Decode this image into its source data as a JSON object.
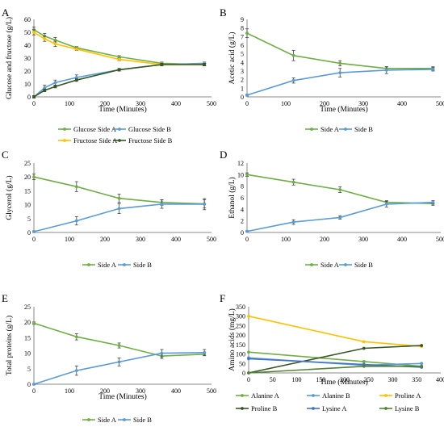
{
  "chart_data": [
    {
      "type": "line",
      "panel_letter": "A",
      "title": "",
      "xlabel": "Time (Minutes)",
      "ylabel": "Glucose and fructose (g/L)",
      "xlim": [
        0,
        500
      ],
      "ylim": [
        0,
        60
      ],
      "xticks": [
        "0",
        "100",
        "200",
        "300",
        "400",
        "500"
      ],
      "yticks": [
        "0",
        "10",
        "20",
        "30",
        "40",
        "50",
        "60"
      ],
      "legend_position": "bottom",
      "series": [
        {
          "name": "Glucose Side A",
          "color": "#70ad47",
          "x": [
            0,
            30,
            60,
            120,
            240,
            360,
            480
          ],
          "y": [
            52,
            47,
            44,
            38,
            31,
            26,
            25
          ],
          "err": [
            2,
            2,
            2,
            1,
            1,
            1,
            1
          ]
        },
        {
          "name": "Glucose Side B",
          "color": "#5b9bd5",
          "x": [
            0,
            30,
            60,
            120,
            240,
            360,
            480
          ],
          "y": [
            0,
            7,
            11,
            15,
            21,
            25,
            26
          ],
          "err": [
            1,
            2,
            2,
            2,
            1,
            1,
            1
          ]
        },
        {
          "name": "Fructose Side A",
          "color": "#ffc000",
          "x": [
            0,
            30,
            60,
            120,
            240,
            360,
            480
          ],
          "y": [
            50,
            45,
            41,
            37,
            29,
            25,
            25
          ],
          "err": [
            2,
            2,
            2,
            1,
            1,
            1,
            1
          ]
        },
        {
          "name": "Fructose Side B",
          "color": "#375623",
          "x": [
            0,
            30,
            60,
            120,
            240,
            360,
            480
          ],
          "y": [
            0,
            5,
            8,
            13,
            21,
            25,
            25
          ],
          "err": [
            1,
            1,
            1,
            1,
            1,
            1,
            1
          ]
        }
      ]
    },
    {
      "type": "line",
      "panel_letter": "B",
      "title": "",
      "xlabel": "Time (Minutes)",
      "ylabel": "Acetic acid (g/L)",
      "xlim": [
        0,
        500
      ],
      "ylim": [
        0,
        9
      ],
      "xticks": [
        "0",
        "100",
        "200",
        "300",
        "400",
        "500"
      ],
      "yticks": [
        "0",
        "1",
        "2",
        "3",
        "4",
        "5",
        "6",
        "7",
        "8",
        "9"
      ],
      "legend_position": "bottom",
      "series": [
        {
          "name": "Side A",
          "color": "#70ad47",
          "x": [
            0,
            120,
            240,
            360,
            480
          ],
          "y": [
            7.4,
            4.8,
            3.9,
            3.3,
            3.3
          ],
          "err": [
            0.5,
            0.6,
            0.3,
            0.2,
            0.2
          ]
        },
        {
          "name": "Side B",
          "color": "#5b9bd5",
          "x": [
            0,
            120,
            240,
            360,
            480
          ],
          "y": [
            0.2,
            1.9,
            2.8,
            3.1,
            3.2
          ],
          "err": [
            0.1,
            0.3,
            0.5,
            0.4,
            0.2
          ]
        }
      ]
    },
    {
      "type": "line",
      "panel_letter": "C",
      "title": "",
      "xlabel": "",
      "ylabel": "Glycerol (g/L)",
      "xlim": [
        0,
        500
      ],
      "ylim": [
        0,
        25
      ],
      "xticks": [
        "0",
        "100",
        "200",
        "300",
        "400",
        "500"
      ],
      "yticks": [
        "0",
        "5",
        "10",
        "15",
        "20",
        "25"
      ],
      "legend_position": "bottom",
      "series": [
        {
          "name": "Side A",
          "color": "#70ad47",
          "x": [
            0,
            120,
            240,
            360,
            480
          ],
          "y": [
            20,
            16.5,
            12.3,
            10.8,
            10.3
          ],
          "err": [
            1,
            1.8,
            1.5,
            1,
            1.5
          ]
        },
        {
          "name": "Side B",
          "color": "#5b9bd5",
          "x": [
            0,
            120,
            240,
            360,
            480
          ],
          "y": [
            0.3,
            4.2,
            8.6,
            10.2,
            10.2
          ],
          "err": [
            0.3,
            1.5,
            1.8,
            1.5,
            2
          ]
        }
      ]
    },
    {
      "type": "line",
      "panel_letter": "D",
      "title": "",
      "xlabel": "",
      "ylabel": "Ethanol (g/L)",
      "xlim": [
        0,
        500
      ],
      "ylim": [
        0,
        12
      ],
      "xticks": [
        "0",
        "100",
        "200",
        "300",
        "400",
        "500"
      ],
      "yticks": [
        "0",
        "2",
        "4",
        "6",
        "8",
        "10",
        "12"
      ],
      "legend_position": "bottom",
      "series": [
        {
          "name": "Side A",
          "color": "#70ad47",
          "x": [
            0,
            120,
            240,
            360,
            480
          ],
          "y": [
            10,
            8.7,
            7.4,
            5.2,
            5
          ],
          "err": [
            0.3,
            0.5,
            0.5,
            0.3,
            0.3
          ]
        },
        {
          "name": "Side B",
          "color": "#5b9bd5",
          "x": [
            0,
            120,
            240,
            360,
            480
          ],
          "y": [
            0.2,
            1.8,
            2.6,
            4.9,
            5.2
          ],
          "err": [
            0.1,
            0.4,
            0.3,
            0.5,
            0.3
          ]
        }
      ]
    },
    {
      "type": "line",
      "panel_letter": "E",
      "title": "",
      "xlabel": "Time (Minutes)",
      "ylabel": "Total proteins (g/L)",
      "xlim": [
        0,
        500
      ],
      "ylim": [
        0,
        25
      ],
      "xticks": [
        "0",
        "100",
        "200",
        "300",
        "400",
        "500"
      ],
      "yticks": [
        "0",
        "5",
        "10",
        "15",
        "20",
        "25"
      ],
      "legend_position": "bottom",
      "series": [
        {
          "name": "Side A",
          "color": "#70ad47",
          "x": [
            0,
            120,
            240,
            360,
            480
          ],
          "y": [
            19.7,
            15.3,
            12.5,
            9.1,
            9.7
          ],
          "err": [
            0.4,
            1,
            0.8,
            0.8,
            0.5
          ]
        },
        {
          "name": "Side B",
          "color": "#5b9bd5",
          "x": [
            0,
            120,
            240,
            360,
            480
          ],
          "y": [
            0,
            4.4,
            7.2,
            10,
            10.2
          ],
          "err": [
            0.2,
            1.5,
            1.3,
            1.2,
            1
          ]
        }
      ]
    },
    {
      "type": "line",
      "panel_letter": "F",
      "title": "",
      "xlabel": "Time (Minutes)",
      "ylabel": "Amino acids (mg/L)",
      "xlim": [
        0,
        400
      ],
      "ylim": [
        0,
        350
      ],
      "xticks": [
        "0",
        "50",
        "100",
        "150",
        "200",
        "250",
        "300",
        "350",
        "400"
      ],
      "yticks": [
        "0",
        "50",
        "100",
        "150",
        "200",
        "250",
        "300",
        "350"
      ],
      "legend_position": "bottom",
      "series": [
        {
          "name": "Alanine A",
          "color": "#70ad47",
          "x": [
            0,
            240,
            360
          ],
          "y": [
            110,
            60,
            35
          ],
          "err": [
            0,
            0,
            0
          ]
        },
        {
          "name": "Alanine B",
          "color": "#5b9bd5",
          "x": [
            0,
            240,
            360
          ],
          "y": [
            80,
            40,
            50
          ],
          "err": [
            0,
            0,
            0
          ]
        },
        {
          "name": "Proline A",
          "color": "#ffc000",
          "x": [
            0,
            240,
            360
          ],
          "y": [
            300,
            165,
            140
          ],
          "err": [
            0,
            0,
            0
          ]
        },
        {
          "name": "Proline B",
          "color": "#375623",
          "x": [
            0,
            240,
            360
          ],
          "y": [
            0,
            130,
            145
          ],
          "err": [
            0,
            0,
            0
          ]
        },
        {
          "name": "Lysine A",
          "color": "#4472c4",
          "x": [
            0,
            240,
            360
          ],
          "y": [
            75,
            45,
            30
          ],
          "err": [
            0,
            0,
            0
          ]
        },
        {
          "name": "Lysine B",
          "color": "#548235",
          "x": [
            0,
            240,
            360
          ],
          "y": [
            0,
            35,
            35
          ],
          "err": [
            0,
            0,
            0
          ]
        }
      ]
    }
  ]
}
